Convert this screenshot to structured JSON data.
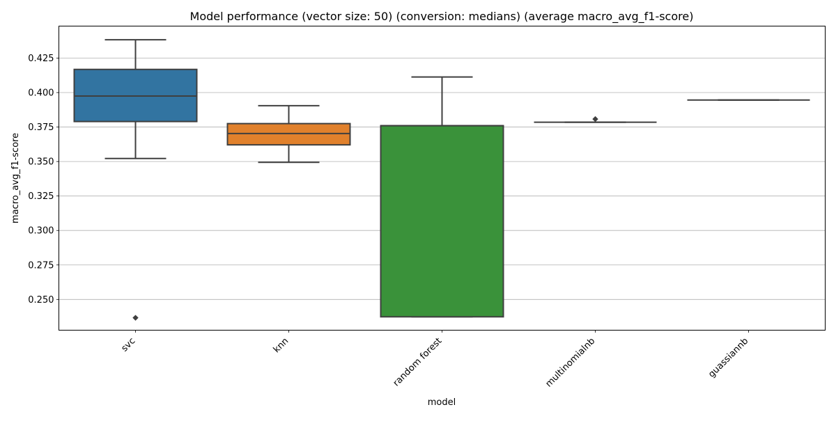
{
  "chart_data": {
    "type": "box",
    "title": "Model performance (vector size: 50) (conversion: medians) (average macro_avg_f1-score)",
    "xlabel": "model",
    "ylabel": "macro_avg_f1-score",
    "ylim": [
      0.2277,
      0.4482
    ],
    "y_ticks": [
      0.25,
      0.275,
      0.3,
      0.325,
      0.35,
      0.375,
      0.4,
      0.425
    ],
    "y_tick_labels": [
      "0.250",
      "0.275",
      "0.300",
      "0.325",
      "0.350",
      "0.375",
      "0.400",
      "0.425"
    ],
    "grid": "horizontal",
    "categories": [
      "svc",
      "knn",
      "random forest",
      "multinomialnb",
      "guassiannb"
    ],
    "boxes": [
      {
        "category": "svc",
        "whisker_low": 0.3522,
        "q1": 0.379,
        "median": 0.3975,
        "q3": 0.4168,
        "whisker_high": 0.4383,
        "outliers": [
          0.2367
        ],
        "color": "#3274a1"
      },
      {
        "category": "knn",
        "whisker_low": 0.3494,
        "q1": 0.3621,
        "median": 0.3703,
        "q3": 0.3775,
        "whisker_high": 0.3905,
        "outliers": [],
        "color": "#e1812c"
      },
      {
        "category": "random forest",
        "whisker_low": 0.2374,
        "q1": 0.2374,
        "median": 0.376,
        "q3": 0.376,
        "whisker_high": 0.4113,
        "outliers": [],
        "color": "#3a923a"
      },
      {
        "category": "multinomialnb",
        "whisker_low": 0.3785,
        "q1": 0.3785,
        "median": 0.3785,
        "q3": 0.3785,
        "whisker_high": 0.3785,
        "outliers": [
          0.3808
        ],
        "color": "#c03d3e"
      },
      {
        "category": "guassiannb",
        "whisker_low": 0.3946,
        "q1": 0.3946,
        "median": 0.3946,
        "q3": 0.3946,
        "whisker_high": 0.3946,
        "outliers": [],
        "color": "#9372b2"
      }
    ]
  }
}
